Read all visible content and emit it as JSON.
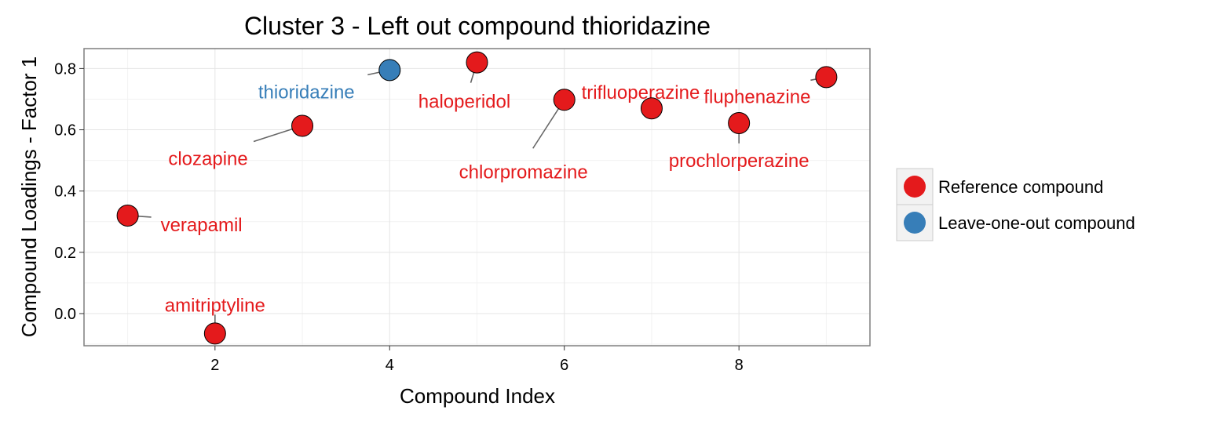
{
  "chart_data": {
    "type": "scatter",
    "title": "Cluster 3 - Left out compound thioridazine",
    "xlabel": "Compound Index",
    "ylabel": "Compound Loadings - Factor 1",
    "xlim": [
      0.5,
      9.5
    ],
    "ylim": [
      -0.105,
      0.865
    ],
    "x_ticks": [
      2,
      4,
      6,
      8
    ],
    "y_ticks": [
      0.0,
      0.2,
      0.4,
      0.6,
      0.8
    ],
    "y_tick_labels": [
      "0.0",
      "0.2",
      "0.4",
      "0.6",
      "0.8"
    ],
    "grid": true,
    "legend_position": "right",
    "colors": {
      "reference": "#e41a1c",
      "leave_one_out": "#377eb8"
    },
    "series": [
      {
        "name": "Reference compound",
        "key": "reference"
      },
      {
        "name": "Leave-one-out compound",
        "key": "leave_one_out"
      }
    ],
    "points": [
      {
        "label": "verapamil",
        "x": 1,
        "y": 0.32,
        "group": "reference"
      },
      {
        "label": "amitriptyline",
        "x": 2,
        "y": -0.065,
        "group": "reference"
      },
      {
        "label": "clozapine",
        "x": 3,
        "y": 0.613,
        "group": "reference"
      },
      {
        "label": "thioridazine",
        "x": 4,
        "y": 0.795,
        "group": "leave_one_out"
      },
      {
        "label": "haloperidol",
        "x": 5,
        "y": 0.82,
        "group": "reference"
      },
      {
        "label": "chlorpromazine",
        "x": 6,
        "y": 0.698,
        "group": "reference"
      },
      {
        "label": "trifluoperazine",
        "x": 7,
        "y": 0.67,
        "group": "reference"
      },
      {
        "label": "prochlorperazine",
        "x": 8,
        "y": 0.622,
        "group": "reference"
      },
      {
        "label": "fluphenazine",
        "x": 9,
        "y": 0.772,
        "group": "reference"
      }
    ]
  }
}
